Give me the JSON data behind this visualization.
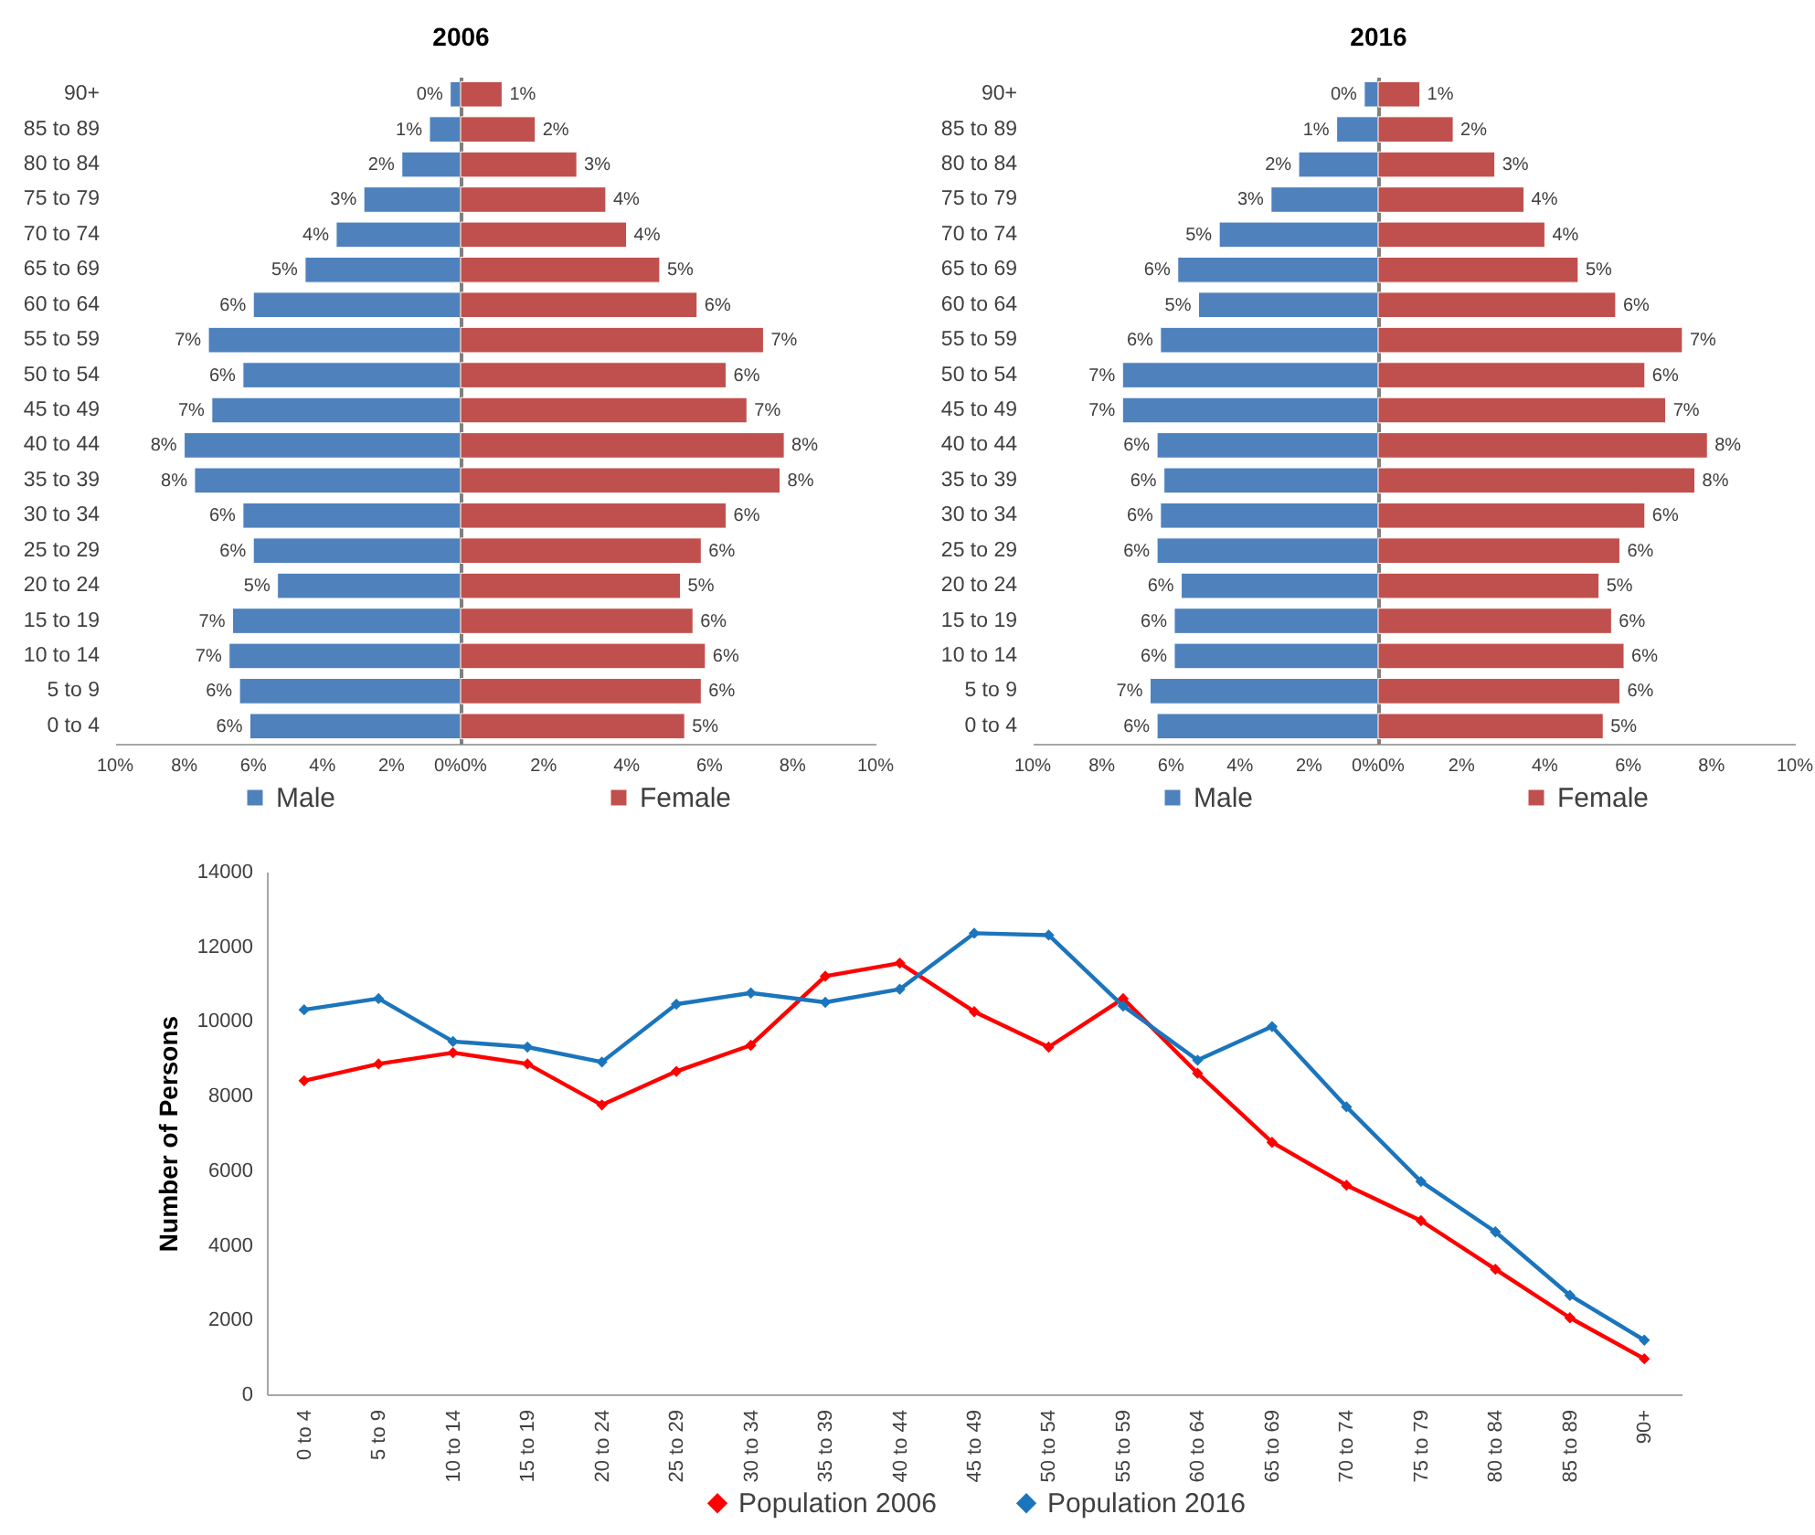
{
  "chart_data": [
    {
      "type": "bar",
      "orientation": "horizontal",
      "title": "2006",
      "categories": [
        "90+",
        "85 to 89",
        "80 to 84",
        "75 to 79",
        "70 to 74",
        "65 to 69",
        "60 to 64",
        "55 to 59",
        "50 to 54",
        "45 to 49",
        "40 to 44",
        "35 to 39",
        "30 to 34",
        "25 to 29",
        "20 to 24",
        "15 to 19",
        "10 to 14",
        "5 to 9",
        "0 to 4"
      ],
      "series": [
        {
          "name": "Male",
          "color": "#4f81bd",
          "values": [
            0.3,
            0.9,
            1.7,
            2.8,
            3.6,
            4.5,
            6.0,
            7.3,
            6.3,
            7.2,
            8.0,
            7.7,
            6.3,
            6.0,
            5.3,
            6.6,
            6.7,
            6.4,
            6.1
          ],
          "value_labels": [
            "0%",
            "1%",
            "2%",
            "3%",
            "4%",
            "5%",
            "6%",
            "7%",
            "6%",
            "7%",
            "8%",
            "8%",
            "6%",
            "6%",
            "5%",
            "7%",
            "7%",
            "6%",
            "6%"
          ]
        }
      ],
      "xlim": [
        10,
        0
      ],
      "xticks": [
        {
          "value": 10,
          "label": "10%"
        },
        {
          "value": 8,
          "label": "8%"
        },
        {
          "value": 6,
          "label": "6%"
        },
        {
          "value": 4,
          "label": "4%"
        },
        {
          "value": 2,
          "label": "2%"
        },
        {
          "value": 0,
          "label": "0%"
        }
      ],
      "legend": "bottom"
    },
    {
      "type": "bar",
      "orientation": "horizontal",
      "categories": [
        null,
        null,
        null,
        null,
        null,
        null,
        null,
        null,
        null,
        null,
        null,
        null,
        null,
        null,
        null,
        null,
        null,
        null,
        null
      ],
      "series": [
        {
          "name": "Female",
          "color": "#c0504d",
          "values": [
            1.0,
            1.8,
            2.8,
            3.5,
            4.0,
            4.8,
            5.7,
            7.3,
            6.4,
            6.9,
            7.8,
            7.7,
            6.4,
            5.8,
            5.3,
            5.6,
            5.9,
            5.8,
            5.4
          ],
          "value_labels": [
            "1%",
            "2%",
            "3%",
            "4%",
            "4%",
            "5%",
            "6%",
            "7%",
            "6%",
            "7%",
            "8%",
            "8%",
            "6%",
            "6%",
            "5%",
            "6%",
            "6%",
            "6%",
            "5%"
          ]
        }
      ],
      "xlim": [
        0,
        10
      ],
      "xticks": [
        {
          "value": 0,
          "label": "0%"
        },
        {
          "value": 2,
          "label": "2%"
        },
        {
          "value": 4,
          "label": "4%"
        },
        {
          "value": 6,
          "label": "6%"
        },
        {
          "value": 8,
          "label": "8%"
        },
        {
          "value": 10,
          "label": "10%"
        }
      ],
      "legend": "bottom"
    },
    {
      "type": "bar",
      "orientation": "horizontal",
      "title": "2016",
      "categories": [
        "90+",
        "85 to 89",
        "80 to 84",
        "75 to 79",
        "70 to 74",
        "65 to 69",
        "60 to 64",
        "55 to 59",
        "50 to 54",
        "45 to 49",
        "40 to 44",
        "35 to 39",
        "30 to 34",
        "25 to 29",
        "20 to 24",
        "15 to 19",
        "10 to 14",
        "5 to 9",
        "0 to 4"
      ],
      "series": [
        {
          "name": "Male",
          "color": "#4f81bd",
          "values": [
            0.4,
            1.2,
            2.3,
            3.1,
            4.6,
            5.8,
            5.2,
            6.3,
            7.4,
            7.4,
            6.4,
            6.2,
            6.3,
            6.4,
            5.7,
            5.9,
            5.9,
            6.6,
            6.4
          ],
          "value_labels": [
            "0%",
            "1%",
            "2%",
            "3%",
            "5%",
            "6%",
            "5%",
            "6%",
            "7%",
            "7%",
            "6%",
            "6%",
            "6%",
            "6%",
            "6%",
            "6%",
            "6%",
            "7%",
            "6%"
          ]
        }
      ],
      "xlim": [
        10,
        0
      ],
      "xticks": [
        {
          "value": 10,
          "label": "10%"
        },
        {
          "value": 8,
          "label": "8%"
        },
        {
          "value": 6,
          "label": "6%"
        },
        {
          "value": 4,
          "label": "4%"
        },
        {
          "value": 2,
          "label": "2%"
        },
        {
          "value": 0,
          "label": "0%"
        }
      ],
      "legend": "bottom"
    },
    {
      "type": "bar",
      "orientation": "horizontal",
      "categories": [
        null,
        null,
        null,
        null,
        null,
        null,
        null,
        null,
        null,
        null,
        null,
        null,
        null,
        null,
        null,
        null,
        null,
        null,
        null
      ],
      "series": [
        {
          "name": "Female",
          "color": "#c0504d",
          "values": [
            1.0,
            1.8,
            2.8,
            3.5,
            4.0,
            4.8,
            5.7,
            7.3,
            6.4,
            6.9,
            7.9,
            7.6,
            6.4,
            5.8,
            5.3,
            5.6,
            5.9,
            5.8,
            5.4
          ],
          "value_labels": [
            "1%",
            "2%",
            "3%",
            "4%",
            "4%",
            "5%",
            "6%",
            "7%",
            "6%",
            "7%",
            "8%",
            "8%",
            "6%",
            "6%",
            "5%",
            "6%",
            "6%",
            "6%",
            "5%"
          ]
        }
      ],
      "xlim": [
        0,
        10
      ],
      "xticks": [
        {
          "value": 0,
          "label": "0%"
        },
        {
          "value": 2,
          "label": "2%"
        },
        {
          "value": 4,
          "label": "4%"
        },
        {
          "value": 6,
          "label": "6%"
        },
        {
          "value": 8,
          "label": "8%"
        },
        {
          "value": 10,
          "label": "10%"
        }
      ],
      "legend": "bottom"
    },
    {
      "type": "line",
      "categories": [
        "0 to 4",
        "5 to 9",
        "10 to 14",
        "15 to 19",
        "20 to 24",
        "25 to 29",
        "30 to 34",
        "35 to 39",
        "40 to 44",
        "45 to 49",
        "50 to 54",
        "55 to 59",
        "60 to 64",
        "65 to 69",
        "70 to 74",
        "75 to 79",
        "80 to 84",
        "85 to 89",
        "90+"
      ],
      "series": [
        {
          "name": "Population 2006",
          "color": "#ff0000",
          "values": [
            8400,
            8850,
            9150,
            8850,
            7750,
            8650,
            9350,
            11200,
            11550,
            10250,
            9300,
            10600,
            8600,
            6750,
            5600,
            4650,
            3350,
            2050,
            950
          ]
        },
        {
          "name": "Population 2016",
          "color": "#1b75bc",
          "values": [
            10300,
            10600,
            9450,
            9300,
            8900,
            10450,
            10750,
            10500,
            10850,
            12350,
            12300,
            10400,
            8950,
            9850,
            7700,
            5700,
            4350,
            2650,
            1450
          ]
        }
      ],
      "ylabel": "Number of Persons",
      "ylim": [
        0,
        14000
      ],
      "yticks": [
        0,
        2000,
        4000,
        6000,
        8000,
        10000,
        12000,
        14000
      ],
      "marker": "diamond",
      "line_style": "solid",
      "legend": "bottom"
    }
  ]
}
